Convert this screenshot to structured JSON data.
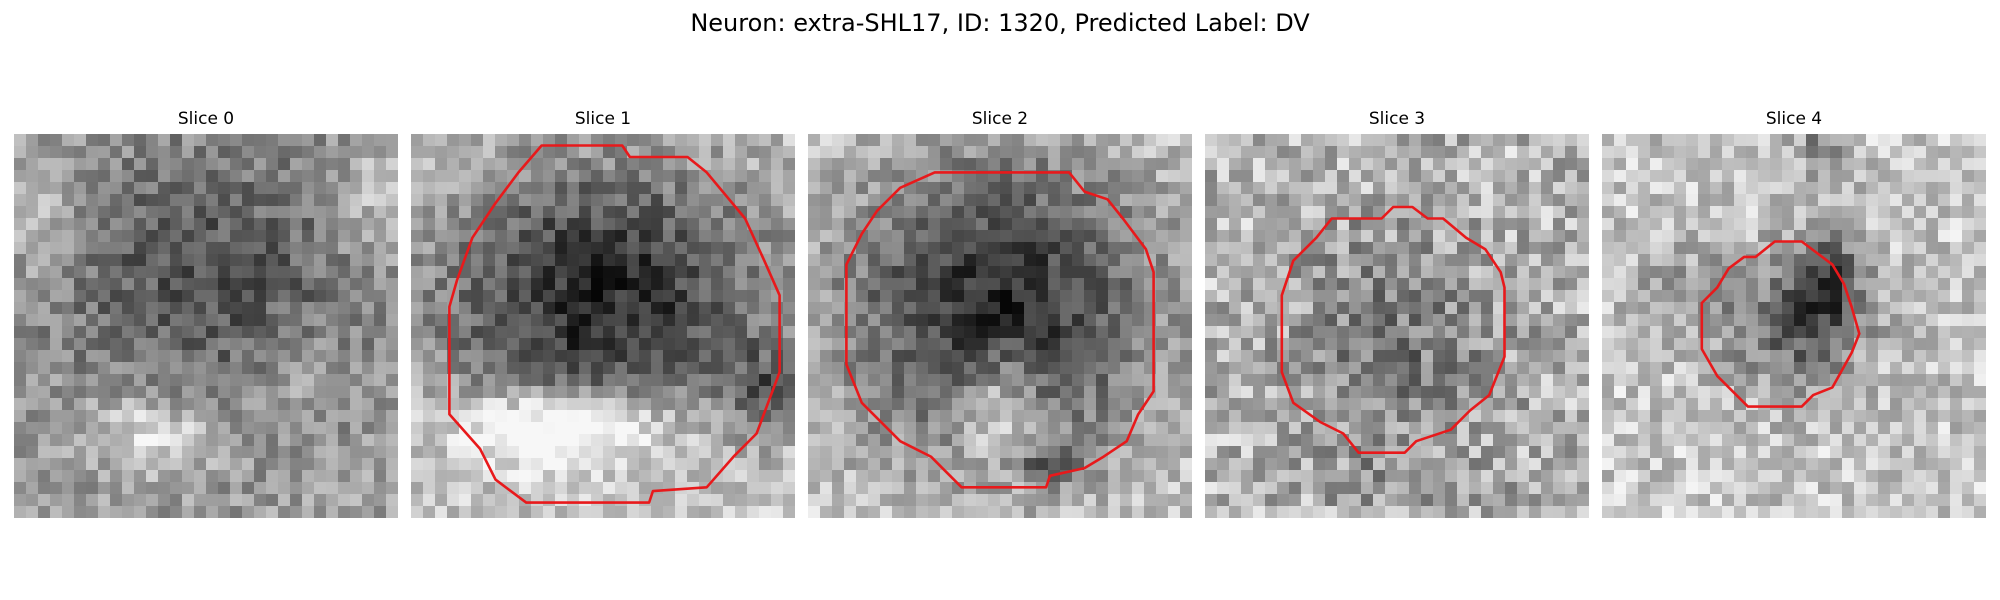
{
  "figure": {
    "title": "Neuron: extra-SHL17, ID: 1320, Predicted Label: DV"
  },
  "contour_color": "#e8191b",
  "panels": [
    {
      "title": "Slice 0",
      "has_contour": false
    },
    {
      "title": "Slice 1",
      "has_contour": true
    },
    {
      "title": "Slice 2",
      "has_contour": true
    },
    {
      "title": "Slice 3",
      "has_contour": true
    },
    {
      "title": "Slice 4",
      "has_contour": true
    }
  ]
}
